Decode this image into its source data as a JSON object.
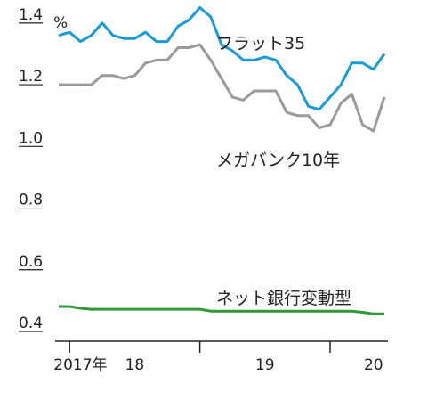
{
  "chart_data": {
    "type": "line",
    "unit": "%",
    "ylim": [
      0.4,
      1.44
    ],
    "y_ticks": [
      {
        "value": 1.4,
        "label": "1.4"
      },
      {
        "value": 1.2,
        "label": "1.2"
      },
      {
        "value": 1.0,
        "label": "1.0"
      },
      {
        "value": 0.8,
        "label": "0.8"
      },
      {
        "value": 0.6,
        "label": "0.6"
      },
      {
        "value": 0.4,
        "label": "0.4"
      }
    ],
    "x_start": "2017-09",
    "x_end": "2020-03",
    "x_tick_marks": [
      "2017-10",
      "2018-10",
      "2019-10"
    ],
    "x_labels": [
      {
        "date": "2017-11",
        "label": "2017年"
      },
      {
        "date": "2018-04",
        "label": "18"
      },
      {
        "date": "2019-04",
        "label": "19"
      },
      {
        "date": "2020-02",
        "label": "20"
      }
    ],
    "grid": false,
    "series": [
      {
        "name": "フラット35",
        "color": "#1a9ad6",
        "points": [
          [
            "2017-09",
            1.36
          ],
          [
            "2017-10",
            1.37
          ],
          [
            "2017-11",
            1.34
          ],
          [
            "2017-12",
            1.36
          ],
          [
            "2018-01",
            1.4
          ],
          [
            "2018-02",
            1.36
          ],
          [
            "2018-03",
            1.35
          ],
          [
            "2018-04",
            1.35
          ],
          [
            "2018-05",
            1.37
          ],
          [
            "2018-06",
            1.34
          ],
          [
            "2018-07",
            1.34
          ],
          [
            "2018-08",
            1.39
          ],
          [
            "2018-09",
            1.41
          ],
          [
            "2018-10",
            1.45
          ],
          [
            "2018-11",
            1.42
          ],
          [
            "2018-12",
            1.33
          ],
          [
            "2019-01",
            1.31
          ],
          [
            "2019-02",
            1.28
          ],
          [
            "2019-03",
            1.28
          ],
          [
            "2019-04",
            1.29
          ],
          [
            "2019-05",
            1.28
          ],
          [
            "2019-06",
            1.23
          ],
          [
            "2019-07",
            1.2
          ],
          [
            "2019-08",
            1.13
          ],
          [
            "2019-09",
            1.12
          ],
          [
            "2019-10",
            1.16
          ],
          [
            "2019-11",
            1.2
          ],
          [
            "2019-12",
            1.27
          ],
          [
            "2020-01",
            1.27
          ],
          [
            "2020-02",
            1.25
          ],
          [
            "2020-03",
            1.3
          ]
        ]
      },
      {
        "name": "メガバンク10年",
        "color": "#9a9a9a",
        "points": [
          [
            "2017-09",
            1.2
          ],
          [
            "2017-10",
            1.2
          ],
          [
            "2017-11",
            1.2
          ],
          [
            "2017-12",
            1.2
          ],
          [
            "2018-01",
            1.23
          ],
          [
            "2018-02",
            1.23
          ],
          [
            "2018-03",
            1.22
          ],
          [
            "2018-04",
            1.23
          ],
          [
            "2018-05",
            1.27
          ],
          [
            "2018-06",
            1.28
          ],
          [
            "2018-07",
            1.28
          ],
          [
            "2018-08",
            1.32
          ],
          [
            "2018-09",
            1.32
          ],
          [
            "2018-10",
            1.33
          ],
          [
            "2018-11",
            1.28
          ],
          [
            "2018-12",
            1.22
          ],
          [
            "2019-01",
            1.16
          ],
          [
            "2019-02",
            1.15
          ],
          [
            "2019-03",
            1.18
          ],
          [
            "2019-04",
            1.18
          ],
          [
            "2019-05",
            1.18
          ],
          [
            "2019-06",
            1.11
          ],
          [
            "2019-07",
            1.1
          ],
          [
            "2019-08",
            1.1
          ],
          [
            "2019-09",
            1.06
          ],
          [
            "2019-10",
            1.07
          ],
          [
            "2019-11",
            1.14
          ],
          [
            "2019-12",
            1.17
          ],
          [
            "2020-01",
            1.07
          ],
          [
            "2020-02",
            1.05
          ],
          [
            "2020-03",
            1.16
          ]
        ]
      },
      {
        "name": "ネット銀行変動型",
        "color": "#2e9a3a",
        "points": [
          [
            "2017-09",
            0.481
          ],
          [
            "2017-10",
            0.481
          ],
          [
            "2017-11",
            0.475
          ],
          [
            "2017-12",
            0.472
          ],
          [
            "2018-01",
            0.472
          ],
          [
            "2018-02",
            0.472
          ],
          [
            "2018-03",
            0.472
          ],
          [
            "2018-04",
            0.472
          ],
          [
            "2018-05",
            0.472
          ],
          [
            "2018-06",
            0.472
          ],
          [
            "2018-07",
            0.472
          ],
          [
            "2018-08",
            0.472
          ],
          [
            "2018-09",
            0.472
          ],
          [
            "2018-10",
            0.472
          ],
          [
            "2018-11",
            0.466
          ],
          [
            "2018-12",
            0.466
          ],
          [
            "2019-01",
            0.466
          ],
          [
            "2019-02",
            0.466
          ],
          [
            "2019-03",
            0.466
          ],
          [
            "2019-04",
            0.466
          ],
          [
            "2019-05",
            0.466
          ],
          [
            "2019-06",
            0.466
          ],
          [
            "2019-07",
            0.466
          ],
          [
            "2019-08",
            0.466
          ],
          [
            "2019-09",
            0.466
          ],
          [
            "2019-10",
            0.466
          ],
          [
            "2019-11",
            0.466
          ],
          [
            "2019-12",
            0.466
          ],
          [
            "2020-01",
            0.462
          ],
          [
            "2020-02",
            0.457
          ],
          [
            "2020-03",
            0.457
          ]
        ]
      }
    ]
  }
}
